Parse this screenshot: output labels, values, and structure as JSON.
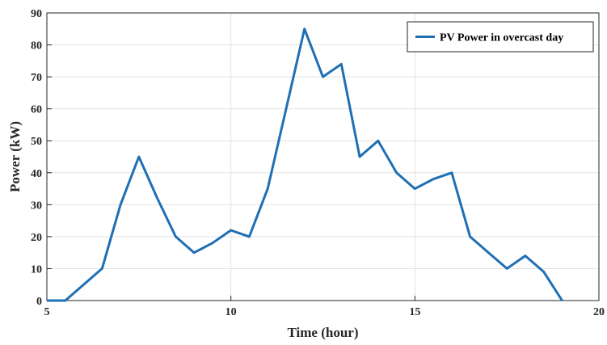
{
  "chart_data": {
    "type": "line",
    "title": "",
    "xlabel": "Time (hour)",
    "ylabel": "Power (kW)",
    "xlim": [
      5,
      20
    ],
    "ylim": [
      0,
      90
    ],
    "xticks": [
      5,
      10,
      15,
      20
    ],
    "yticks": [
      0,
      10,
      20,
      30,
      40,
      50,
      60,
      70,
      80,
      90
    ],
    "grid": true,
    "legend_position": "top-right",
    "series": [
      {
        "name": "PV Power in overcast day",
        "color": "#1f6fb5",
        "x": [
          5,
          5.5,
          6,
          6.5,
          7,
          7.5,
          8,
          8.5,
          9,
          9.5,
          10,
          10.5,
          11,
          11.5,
          12,
          12.5,
          13,
          13.5,
          14,
          14.5,
          15,
          15.5,
          16,
          16.5,
          17,
          17.5,
          18,
          18.5,
          19
        ],
        "y": [
          0,
          0,
          5,
          10,
          30,
          45,
          32,
          20,
          15,
          18,
          22,
          20,
          35,
          60,
          85,
          70,
          74,
          45,
          50,
          40,
          35,
          38,
          40,
          20,
          15,
          10,
          14,
          9,
          0
        ]
      }
    ]
  }
}
